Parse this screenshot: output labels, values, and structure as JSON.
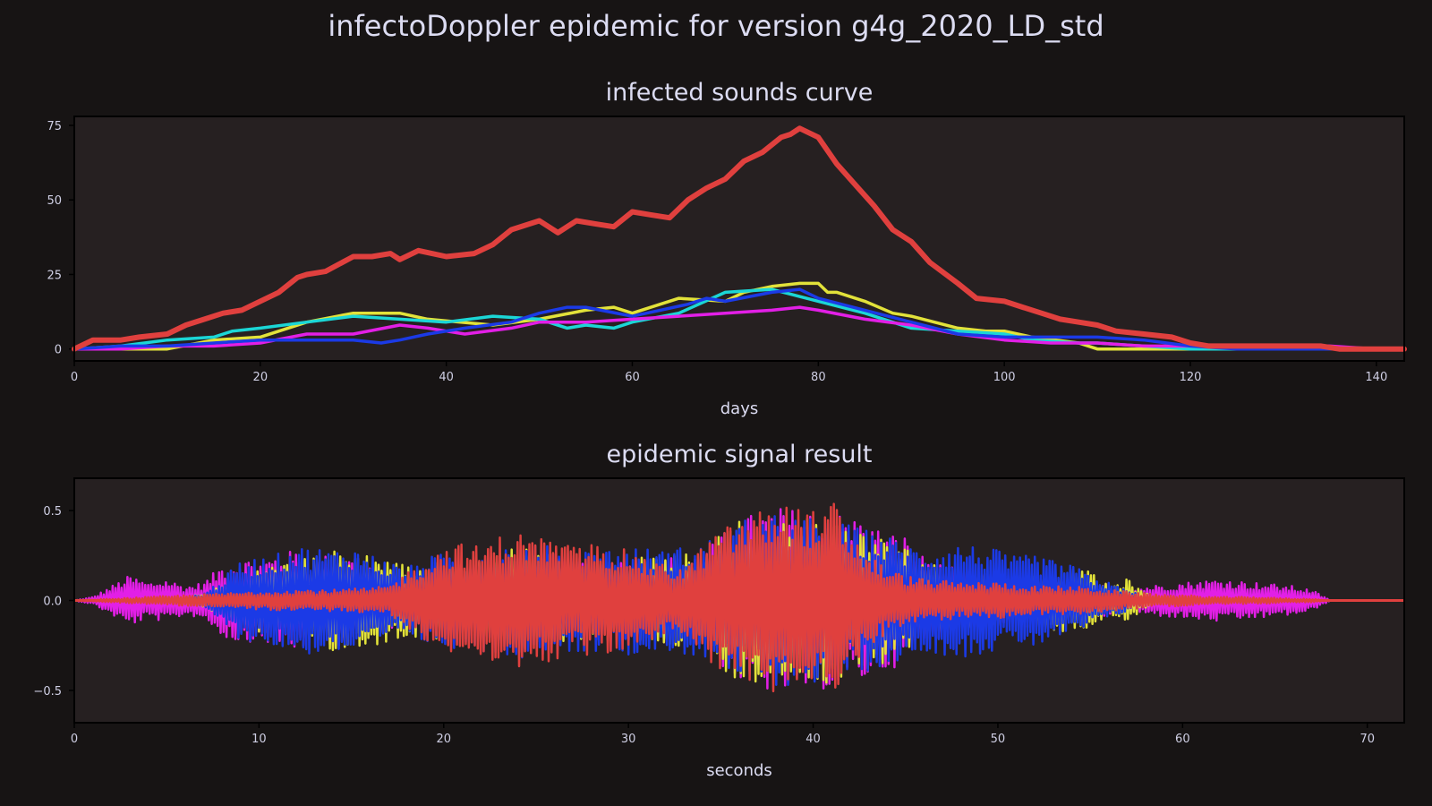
{
  "page": {
    "title": "infectoDoppler epidemic for version g4g_2020_LD_std"
  },
  "colors": {
    "figure_background": "#171414",
    "axes_background": "#262021",
    "axes_edge": "#000000",
    "text": "#dcdcf2"
  },
  "chart_data": [
    {
      "type": "line",
      "title": "infected sounds curve",
      "xlabel": "days",
      "ylabel": "",
      "xlim": [
        0,
        143
      ],
      "ylim": [
        -4,
        78
      ],
      "xticks": [
        0,
        20,
        40,
        60,
        80,
        100,
        120,
        140
      ],
      "yticks": [
        0,
        25,
        50,
        75
      ],
      "grid": false,
      "legend": "none",
      "series": [
        {
          "color": "#e2e23a",
          "x": [
            0,
            5,
            10,
            15,
            20,
            25,
            30,
            35,
            38,
            45,
            50,
            55,
            58,
            60,
            65,
            70,
            72,
            75,
            78,
            80,
            81,
            82,
            85,
            88,
            90,
            95,
            98,
            100,
            103,
            108,
            110,
            115,
            120,
            125,
            130,
            135,
            140,
            143
          ],
          "values": [
            0,
            0,
            0,
            3,
            4,
            9,
            12,
            12,
            10,
            8,
            10,
            13,
            14,
            12,
            17,
            16,
            19,
            21,
            22,
            22,
            19,
            19,
            16,
            12,
            11,
            7,
            6,
            6,
            4,
            2,
            0,
            0,
            0,
            0,
            0,
            0,
            0,
            0
          ]
        },
        {
          "color": "#1bd6d6",
          "x": [
            0,
            5,
            10,
            15,
            17,
            20,
            25,
            30,
            35,
            40,
            45,
            50,
            53,
            55,
            58,
            60,
            65,
            70,
            75,
            80,
            85,
            90,
            95,
            100,
            103,
            108,
            110,
            115,
            120,
            125,
            130,
            135,
            140,
            143
          ],
          "values": [
            0,
            1,
            3,
            4,
            6,
            7,
            9,
            11,
            10,
            9,
            11,
            10,
            7,
            8,
            7,
            9,
            12,
            19,
            20,
            16,
            12,
            7,
            6,
            5,
            3,
            2,
            2,
            1,
            0,
            0,
            0,
            0,
            0,
            0
          ]
        },
        {
          "color": "#e21fe6",
          "x": [
            0,
            5,
            10,
            15,
            20,
            25,
            30,
            35,
            38,
            42,
            47,
            50,
            55,
            60,
            65,
            70,
            75,
            78,
            80,
            85,
            90,
            95,
            100,
            105,
            110,
            115,
            120,
            125,
            130,
            135,
            140,
            143
          ],
          "values": [
            0,
            0,
            1,
            1,
            2,
            5,
            5,
            8,
            7,
            5,
            7,
            9,
            9,
            10,
            11,
            12,
            13,
            14,
            13,
            10,
            8,
            5,
            3,
            2,
            2,
            1,
            1,
            1,
            1,
            1,
            0,
            0
          ]
        },
        {
          "color": "#1b3ae6",
          "x": [
            0,
            5,
            10,
            15,
            20,
            25,
            30,
            33,
            35,
            38,
            42,
            47,
            50,
            53,
            55,
            60,
            63,
            66,
            68,
            70,
            75,
            78,
            80,
            85,
            90,
            95,
            100,
            105,
            110,
            115,
            120,
            125,
            130,
            135,
            140,
            143
          ],
          "values": [
            0,
            1,
            1,
            2,
            3,
            3,
            3,
            2,
            3,
            5,
            7,
            9,
            12,
            14,
            14,
            11,
            13,
            15,
            17,
            16,
            19,
            20,
            17,
            13,
            9,
            5,
            4,
            4,
            4,
            3,
            1,
            0,
            0,
            0,
            0,
            0
          ]
        },
        {
          "color": "#e0403e",
          "x": [
            0,
            2,
            5,
            7,
            10,
            12,
            14,
            16,
            18,
            20,
            22,
            24,
            25,
            27,
            30,
            32,
            34,
            35,
            37,
            40,
            43,
            45,
            47,
            50,
            52,
            54,
            56,
            58,
            60,
            62,
            64,
            66,
            68,
            70,
            72,
            74,
            76,
            77,
            78,
            80,
            82,
            84,
            86,
            88,
            90,
            92,
            95,
            97,
            100,
            102,
            104,
            106,
            108,
            110,
            112,
            115,
            118,
            120,
            122,
            125,
            130,
            134,
            136,
            140,
            143
          ],
          "values": [
            0,
            3,
            3,
            4,
            5,
            8,
            10,
            12,
            13,
            16,
            19,
            24,
            25,
            26,
            31,
            31,
            32,
            30,
            33,
            31,
            32,
            35,
            40,
            43,
            39,
            43,
            42,
            41,
            46,
            45,
            44,
            50,
            54,
            57,
            63,
            66,
            71,
            72,
            74,
            71,
            62,
            55,
            48,
            40,
            36,
            29,
            22,
            17,
            16,
            14,
            12,
            10,
            9,
            8,
            6,
            5,
            4,
            2,
            1,
            1,
            1,
            1,
            0,
            0,
            0
          ]
        }
      ]
    },
    {
      "type": "line",
      "title": "epidemic signal result",
      "xlabel": "seconds",
      "ylabel": "",
      "xlim": [
        0,
        72
      ],
      "ylim": [
        -0.68,
        0.68
      ],
      "xticks": [
        0,
        10,
        20,
        30,
        40,
        50,
        60,
        70
      ],
      "yticks": [
        0.5,
        0.0,
        -0.5
      ],
      "ytick_labels": [
        "0.5",
        "0.0",
        "−0.5"
      ],
      "grid": false,
      "legend": "none",
      "series": [
        {
          "color": "#e21fe6",
          "x": [
            0,
            1,
            2,
            3,
            4,
            5,
            6,
            7,
            8,
            9,
            10,
            11,
            12,
            13,
            14,
            15,
            16,
            17,
            18,
            19,
            20,
            22,
            24,
            26,
            28,
            30,
            32,
            34,
            36,
            38,
            40,
            42,
            44,
            45,
            46,
            47,
            48,
            50,
            52,
            54,
            55,
            56,
            57,
            58,
            60,
            62,
            64,
            66,
            67,
            68,
            70,
            72
          ],
          "values": [
            0.0,
            0.02,
            0.08,
            0.14,
            0.1,
            0.12,
            0.08,
            0.1,
            0.2,
            0.24,
            0.22,
            0.26,
            0.28,
            0.24,
            0.26,
            0.24,
            0.22,
            0.16,
            0.14,
            0.16,
            0.2,
            0.2,
            0.24,
            0.26,
            0.24,
            0.22,
            0.24,
            0.26,
            0.46,
            0.52,
            0.5,
            0.48,
            0.38,
            0.36,
            0.24,
            0.2,
            0.18,
            0.14,
            0.12,
            0.1,
            0.08,
            0.1,
            0.06,
            0.08,
            0.1,
            0.12,
            0.1,
            0.08,
            0.06,
            0.0,
            0.0,
            0.0
          ]
        },
        {
          "color": "#e2e23a",
          "x": [
            0,
            5,
            7,
            8,
            10,
            12,
            14,
            16,
            18,
            20,
            22,
            24,
            26,
            28,
            30,
            32,
            34,
            36,
            38,
            40,
            42,
            44,
            45,
            46,
            48,
            50,
            52,
            54,
            55,
            56,
            57,
            58,
            60,
            65,
            70,
            72
          ],
          "values": [
            0.0,
            0.0,
            0.04,
            0.08,
            0.18,
            0.22,
            0.28,
            0.26,
            0.2,
            0.22,
            0.22,
            0.3,
            0.26,
            0.22,
            0.24,
            0.24,
            0.28,
            0.46,
            0.44,
            0.48,
            0.42,
            0.34,
            0.3,
            0.22,
            0.16,
            0.14,
            0.16,
            0.18,
            0.16,
            0.08,
            0.12,
            0.04,
            0.0,
            0.0,
            0.0,
            0.0
          ]
        },
        {
          "color": "#1b3ae6",
          "x": [
            0,
            5,
            7,
            8,
            9,
            10,
            11,
            12,
            13,
            14,
            15,
            16,
            17,
            18,
            19,
            20,
            22,
            24,
            26,
            28,
            30,
            32,
            34,
            36,
            38,
            40,
            42,
            44,
            45,
            46,
            47,
            48,
            49,
            50,
            51,
            52,
            53,
            54,
            55,
            56,
            58,
            60,
            65,
            70,
            72
          ],
          "values": [
            0.0,
            0.0,
            0.04,
            0.12,
            0.22,
            0.24,
            0.26,
            0.3,
            0.3,
            0.28,
            0.3,
            0.26,
            0.22,
            0.18,
            0.24,
            0.26,
            0.28,
            0.32,
            0.3,
            0.28,
            0.3,
            0.28,
            0.32,
            0.44,
            0.48,
            0.46,
            0.42,
            0.36,
            0.32,
            0.28,
            0.3,
            0.32,
            0.3,
            0.28,
            0.24,
            0.26,
            0.22,
            0.2,
            0.14,
            0.1,
            0.02,
            0.0,
            0.0,
            0.0,
            0.0
          ]
        },
        {
          "color": "#e0403e",
          "x": [
            0,
            2,
            4,
            6,
            8,
            10,
            12,
            14,
            16,
            17,
            18,
            19,
            20,
            21,
            22,
            23,
            24,
            25,
            26,
            27,
            28,
            29,
            30,
            31,
            32,
            33,
            34,
            35,
            36,
            37,
            38,
            39,
            40,
            40.5,
            41,
            41.5,
            42,
            43,
            44,
            45,
            46,
            48,
            50,
            52,
            54,
            56,
            58,
            60,
            62,
            64,
            66,
            67,
            68,
            70,
            72
          ],
          "values": [
            0.0,
            0.01,
            0.02,
            0.03,
            0.04,
            0.05,
            0.06,
            0.06,
            0.07,
            0.08,
            0.16,
            0.22,
            0.3,
            0.32,
            0.3,
            0.36,
            0.38,
            0.36,
            0.34,
            0.3,
            0.32,
            0.3,
            0.28,
            0.22,
            0.2,
            0.18,
            0.3,
            0.4,
            0.44,
            0.5,
            0.52,
            0.54,
            0.5,
            0.42,
            0.6,
            0.48,
            0.38,
            0.26,
            0.18,
            0.14,
            0.12,
            0.1,
            0.1,
            0.08,
            0.08,
            0.06,
            0.04,
            0.03,
            0.02,
            0.02,
            0.01,
            0.01,
            0.0,
            0.0,
            0.0
          ]
        }
      ]
    }
  ]
}
